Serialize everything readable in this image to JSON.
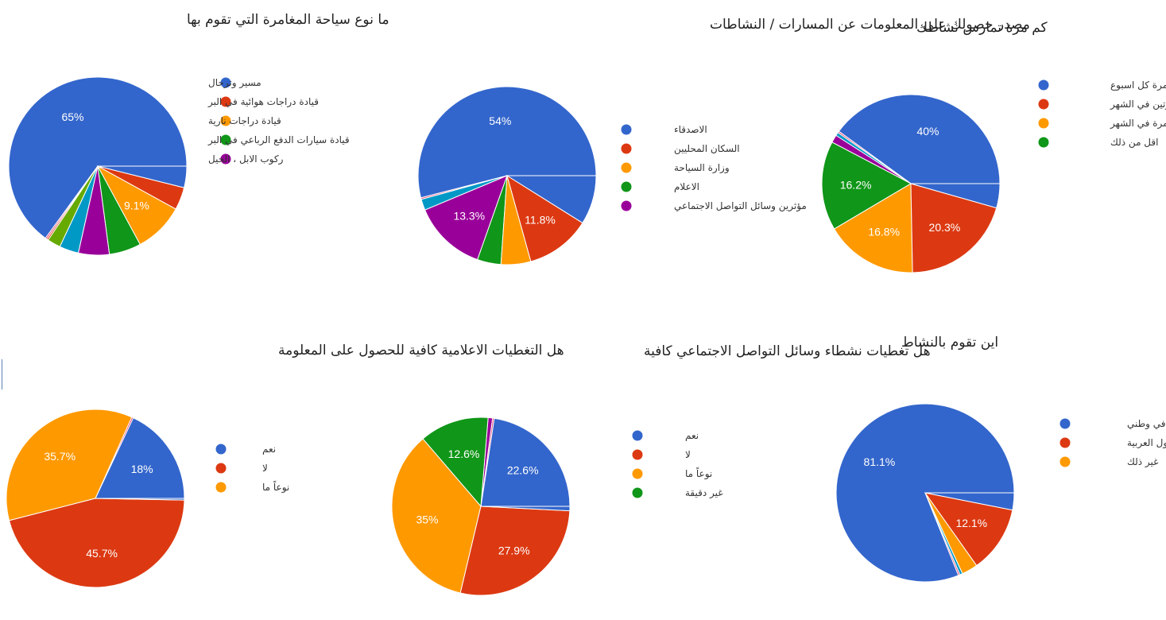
{
  "colors": {
    "blue": "#3366cc",
    "red": "#dc3912",
    "orange": "#ff9900",
    "green": "#109618",
    "purple": "#990099",
    "teal": "#0099c6",
    "pink": "#dd4477",
    "lime": "#66aa00",
    "slice_stroke": "#ffffff"
  },
  "chart_data": [
    {
      "type": "pie",
      "title": "ما نوع سياحة المغامرة التي تقوم بها",
      "start_angle_deg": 90,
      "slices": [
        {
          "name": "مسير وترحال",
          "value": 65,
          "color": "blue",
          "label": "65%"
        },
        {
          "name": "",
          "value": 0.3,
          "color": "pink",
          "label": ""
        },
        {
          "name": "",
          "value": 0.3,
          "color": "red",
          "label": ""
        },
        {
          "name": "",
          "value": 2.4,
          "color": "lime",
          "label": ""
        },
        {
          "name": "",
          "value": 3.5,
          "color": "teal",
          "label": ""
        },
        {
          "name": "ركوب الابل ، الخيل",
          "value": 5.6,
          "color": "purple",
          "label": ""
        },
        {
          "name": "قيادة سيارات الدفع الرباعي في البر",
          "value": 5.8,
          "color": "green",
          "label": ""
        },
        {
          "name": "قيادة دراجات نارية",
          "value": 9.1,
          "color": "orange",
          "label": "9.1%"
        },
        {
          "name": "قيادة دراجات هوائية في البر",
          "value": 4.1,
          "color": "red",
          "label": ""
        },
        {
          "name": "",
          "value": 3.9,
          "color": "blue",
          "label": ""
        }
      ],
      "legend": [
        "مسير وترحال",
        "قيادة دراجات هوائية في البر",
        "قيادة دراجات نارية",
        "قيادة سيارات الدفع الرباعي في البر",
        "ركوب الابل ، الخيل"
      ]
    },
    {
      "type": "pie",
      "title": "مصدر حصولك على المعلومات عن المسارات / النشاطات",
      "start_angle_deg": 90,
      "slices": [
        {
          "name": "الاصدقاء",
          "value": 54,
          "color": "blue",
          "label": "54%"
        },
        {
          "name": "",
          "value": 0.3,
          "color": "pink",
          "label": ""
        },
        {
          "name": "",
          "value": 2.0,
          "color": "teal",
          "label": ""
        },
        {
          "name": "مؤثرين وسائل التواصل الاجتماعي",
          "value": 13.3,
          "color": "purple",
          "label": "13.3%"
        },
        {
          "name": "الاعلام",
          "value": 4.3,
          "color": "green",
          "label": ""
        },
        {
          "name": "وزارة السياحة",
          "value": 5.4,
          "color": "orange",
          "label": ""
        },
        {
          "name": "السكان المحليين",
          "value": 11.8,
          "color": "red",
          "label": "11.8%"
        },
        {
          "name": "",
          "value": 8.9,
          "color": "blue",
          "label": ""
        }
      ],
      "legend": [
        "الاصدقاء",
        "السكان المحليين",
        "وزارة السياحة",
        "الاعلام",
        "مؤثرين وسائل التواصل الاجتماعي"
      ]
    },
    {
      "type": "pie",
      "title": "كم مرة تمارس نشاطك",
      "start_angle_deg": 90,
      "slices": [
        {
          "name": "مرة كل اسبوع",
          "value": 40,
          "color": "blue",
          "label": "40%"
        },
        {
          "name": "",
          "value": 0.3,
          "color": "pink",
          "label": ""
        },
        {
          "name": "",
          "value": 0.6,
          "color": "teal",
          "label": ""
        },
        {
          "name": "",
          "value": 1.4,
          "color": "purple",
          "label": ""
        },
        {
          "name": "اقل من ذلك",
          "value": 16.2,
          "color": "green",
          "label": "16.2%"
        },
        {
          "name": "مرة في الشهر",
          "value": 16.8,
          "color": "orange",
          "label": "16.8%"
        },
        {
          "name": "مرتين في الشهر",
          "value": 20.3,
          "color": "red",
          "label": "20.3%"
        },
        {
          "name": "",
          "value": 4.4,
          "color": "blue",
          "label": ""
        }
      ],
      "legend": [
        "مرة كل اسبوع",
        "مرتين في الشهر",
        "مرة في الشهر",
        "اقل من ذلك"
      ]
    },
    {
      "type": "pie",
      "title": "هل التغطيات الاعلامية كافية للحصول على المعلومة",
      "start_angle_deg": 90,
      "slices": [
        {
          "name": "نعم",
          "value": 18,
          "color": "blue",
          "label": "18%"
        },
        {
          "name": "",
          "value": 0.3,
          "color": "pink",
          "label": ""
        },
        {
          "name": "نوعاً ما",
          "value": 35.7,
          "color": "orange",
          "label": "35.7%"
        },
        {
          "name": "لا",
          "value": 45.7,
          "color": "red",
          "label": "45.7%"
        },
        {
          "name": "",
          "value": 0.3,
          "color": "blue",
          "label": ""
        }
      ],
      "legend": [
        "نعم",
        "لا",
        "نوعاً ما"
      ]
    },
    {
      "type": "pie",
      "title": "هل تغطيات نشطاء وسائل التواصل الاجتماعي كافية",
      "start_angle_deg": 90,
      "slices": [
        {
          "name": "نعم",
          "value": 22.6,
          "color": "blue",
          "label": "22.6%"
        },
        {
          "name": "",
          "value": 0.3,
          "color": "pink",
          "label": ""
        },
        {
          "name": "",
          "value": 0.8,
          "color": "purple",
          "label": ""
        },
        {
          "name": "غير دقيقة",
          "value": 12.6,
          "color": "green",
          "label": "12.6%"
        },
        {
          "name": "نوعاً ما",
          "value": 35,
          "color": "orange",
          "label": "35%"
        },
        {
          "name": "لا",
          "value": 27.9,
          "color": "red",
          "label": "27.9%"
        },
        {
          "name": "",
          "value": 0.8,
          "color": "blue",
          "label": ""
        }
      ],
      "legend": [
        "نعم",
        "لا",
        "نوعاً ما",
        "غير دقيقة"
      ]
    },
    {
      "type": "pie",
      "title": "اين تقوم بالنشاط",
      "start_angle_deg": 90,
      "slices": [
        {
          "name": "في وطني",
          "value": 81.1,
          "color": "blue",
          "label": "81.1%"
        },
        {
          "name": "",
          "value": 0.3,
          "color": "pink",
          "label": ""
        },
        {
          "name": "",
          "value": 0.5,
          "color": "teal",
          "label": ""
        },
        {
          "name": "غير ذلك",
          "value": 2.9,
          "color": "orange",
          "label": ""
        },
        {
          "name": "الدول العربية",
          "value": 12.1,
          "color": "red",
          "label": "12.1%"
        },
        {
          "name": "",
          "value": 3.1,
          "color": "blue",
          "label": ""
        }
      ],
      "legend": [
        "في وطني",
        "الدول العربية",
        "غير ذلك"
      ]
    }
  ]
}
